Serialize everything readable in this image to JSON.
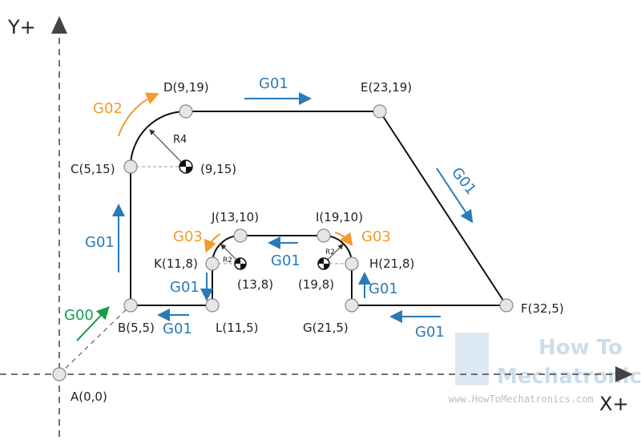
{
  "axes": {
    "y": "Y+",
    "x": "X+"
  },
  "points": [
    {
      "label": "A(0,0)"
    },
    {
      "label": "B(5,5)"
    },
    {
      "label": "C(5,15)"
    },
    {
      "label": "D(9,19)"
    },
    {
      "label": "E(23,19)"
    },
    {
      "label": "F(32,5)"
    },
    {
      "label": "G(21,5)"
    },
    {
      "label": "H(21,8)"
    },
    {
      "label": "I(19,10)"
    },
    {
      "label": "J(13,10)"
    },
    {
      "label": "K(11,8)"
    },
    {
      "label": "L(11,5)"
    }
  ],
  "centers": [
    "(9,15)",
    "(13,8)",
    "(19,8)"
  ],
  "radii": [
    "R4",
    "R2",
    "R2"
  ],
  "commands": [
    "G00",
    "G01",
    "G01",
    "G01",
    "G01",
    "G01",
    "G01",
    "G01",
    "G01",
    "G02",
    "G03",
    "G03"
  ],
  "watermark": {
    "line1": "How To",
    "line2": "Mechatronics",
    "url": "www.HowToMechatronics.com"
  }
}
